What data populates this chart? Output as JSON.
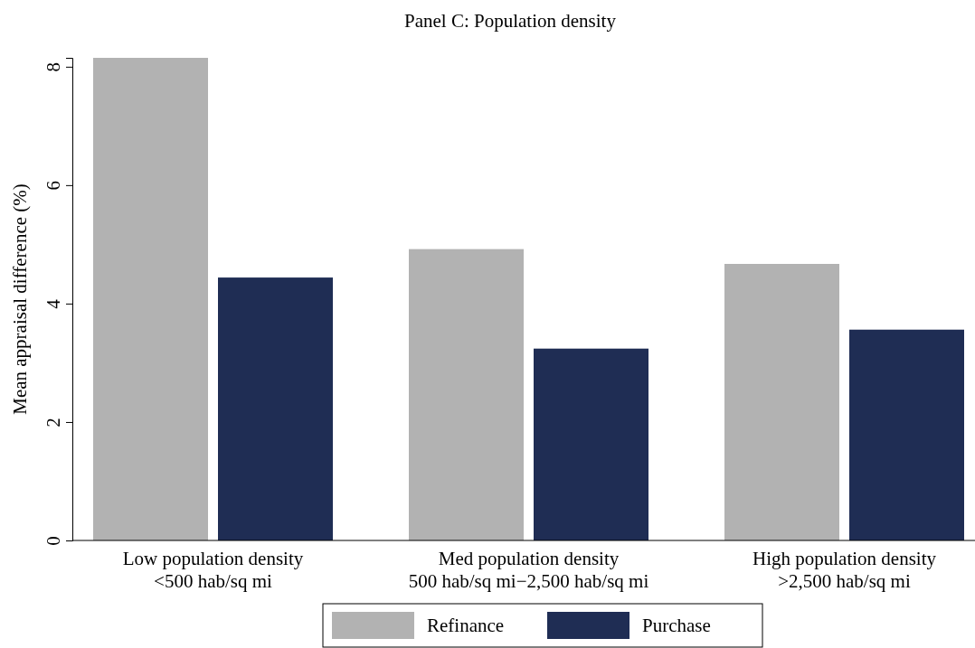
{
  "chart_data": {
    "type": "bar",
    "title": "Panel C: Population density",
    "ylabel": "Mean appraisal difference (%)",
    "categories": [
      "Low population density\n<500 hab/sq mi",
      "Med population density\n500 hab/sq mi−2,500 hab/sq mi",
      "High population density\n>2,500 hab/sq mi"
    ],
    "series": [
      {
        "name": "Refinance",
        "color": "#b2b2b2",
        "values": [
          8.15,
          4.92,
          4.67
        ]
      },
      {
        "name": "Purchase",
        "color": "#1f2d54",
        "values": [
          4.44,
          3.24,
          3.56
        ]
      }
    ],
    "ylim": [
      0,
      8.15
    ],
    "yticks": [
      0,
      2,
      4,
      6,
      8
    ],
    "grid": false,
    "legend": "bottom"
  }
}
